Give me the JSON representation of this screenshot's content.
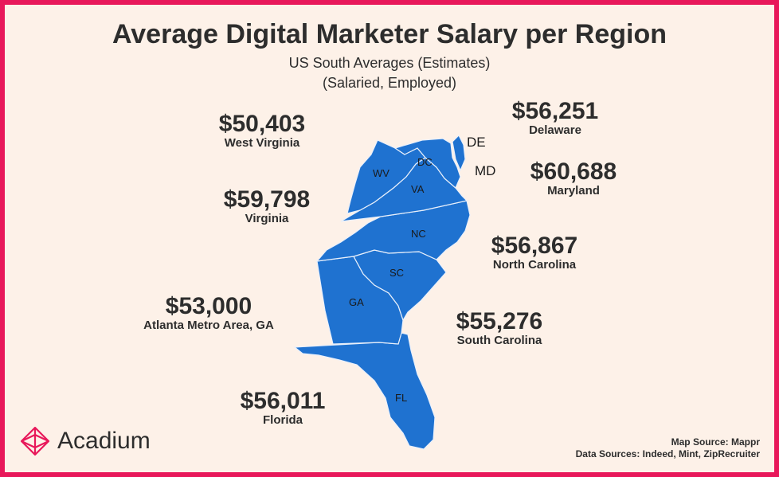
{
  "title": "Average Digital Marketer Salary per Region",
  "subtitle_1": "US South Averages (Estimates)",
  "subtitle_2": "(Salaried, Employed)",
  "map_labels": {
    "WV": "WV",
    "DC": "DC",
    "VA": "VA",
    "NC": "NC",
    "SC": "SC",
    "GA": "GA",
    "FL": "FL",
    "DE": "DE",
    "MD": "MD"
  },
  "salaries": [
    {
      "amount": "$50,403",
      "region": "West Virginia"
    },
    {
      "amount": "$59,798",
      "region": "Virginia"
    },
    {
      "amount": "$53,000",
      "region": "Atlanta Metro Area, GA"
    },
    {
      "amount": "$56,011",
      "region": "Florida"
    },
    {
      "amount": "$56,251",
      "region": "Delaware"
    },
    {
      "amount": "$60,688",
      "region": "Maryland"
    },
    {
      "amount": "$56,867",
      "region": "North Carolina"
    },
    {
      "amount": "$55,276",
      "region": "South Carolina"
    }
  ],
  "brand": {
    "name": "Acadium",
    "color": "#e8185a"
  },
  "sources": {
    "map": "Map Source: Mappr",
    "data": "Data Sources: Indeed, Mint, ZipRecruiter"
  },
  "colors": {
    "map_fill": "#1f72d0",
    "map_border": "#e9f0fb",
    "background": "#fdf1e8",
    "frame": "#e8185a"
  }
}
